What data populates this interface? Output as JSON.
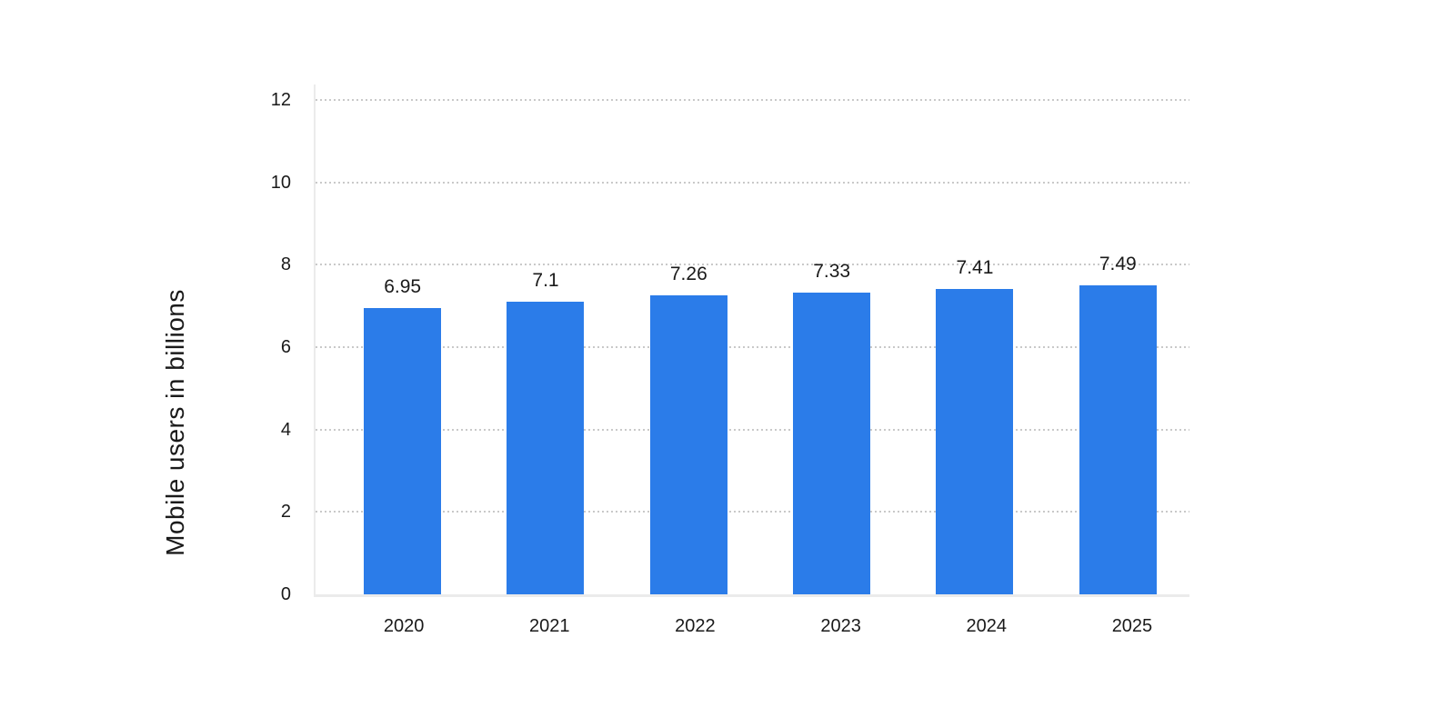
{
  "chart_data": {
    "type": "bar",
    "title": "",
    "ylabel": "Mobile users in billions",
    "xlabel": "",
    "categories": [
      "2020",
      "2021",
      "2022",
      "2023",
      "2024",
      "2025"
    ],
    "values": [
      6.95,
      7.1,
      7.26,
      7.33,
      7.41,
      7.49
    ],
    "bar_labels": [
      "6.95",
      "7.1",
      "7.26",
      "7.33",
      "7.41",
      "7.49"
    ],
    "ylim": [
      0,
      12
    ],
    "yticks": [
      12,
      10,
      8,
      6,
      4,
      2,
      0
    ],
    "grid": "horizontal-dotted",
    "legend": "none",
    "colors": {
      "bar": "#2b7ce9",
      "gridline": "#c9c9c9",
      "axis_line": "#ebebeb",
      "text": "#1a1a1a",
      "background": "#ffffff"
    }
  }
}
